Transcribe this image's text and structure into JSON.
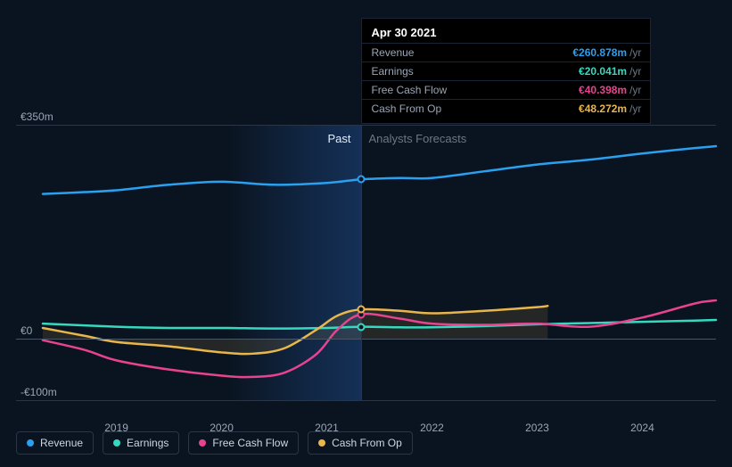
{
  "tooltip": {
    "date": "Apr 30 2021",
    "unit": "/yr",
    "rows": [
      {
        "label": "Revenue",
        "value": "€260.878m",
        "color": "#2aa0f0"
      },
      {
        "label": "Earnings",
        "value": "€20.041m",
        "color": "#35d9c0"
      },
      {
        "label": "Free Cash Flow",
        "value": "€40.398m",
        "color": "#e8438f"
      },
      {
        "label": "Cash From Op",
        "value": "€48.272m",
        "color": "#e8b64a"
      }
    ]
  },
  "chart": {
    "background_color": "#0a1420",
    "grid_color": "#2a3545",
    "zero_line_color": "#4a5565",
    "y_axis": {
      "min": -100,
      "max": 350,
      "ticks": [
        {
          "v": 350,
          "label": "€350m"
        },
        {
          "v": 0,
          "label": "€0"
        },
        {
          "v": -100,
          "label": "-€100m"
        }
      ],
      "label_color": "#9aa5b5",
      "label_fontsize": 12
    },
    "x_axis": {
      "min": 2018.3,
      "max": 2024.7,
      "ticks": [
        2019,
        2020,
        2021,
        2022,
        2023,
        2024
      ],
      "label_color": "#9aa5b5",
      "label_fontsize": 12
    },
    "split_x": 2021.33,
    "past_label": "Past",
    "forecast_label": "Analysts Forecasts",
    "past_band_start_x": 2020.05,
    "series": [
      {
        "name": "Revenue",
        "color": "#2aa0f0",
        "width": 2.5,
        "marker_value": 260.878,
        "points": [
          [
            2018.3,
            237
          ],
          [
            2018.7,
            240
          ],
          [
            2019.0,
            243
          ],
          [
            2019.5,
            252
          ],
          [
            2020.0,
            257
          ],
          [
            2020.5,
            252
          ],
          [
            2021.0,
            255
          ],
          [
            2021.33,
            260.878
          ],
          [
            2021.7,
            263
          ],
          [
            2022.0,
            263
          ],
          [
            2022.5,
            274
          ],
          [
            2023.0,
            285
          ],
          [
            2023.5,
            293
          ],
          [
            2024.0,
            303
          ],
          [
            2024.5,
            312
          ],
          [
            2024.7,
            315
          ]
        ]
      },
      {
        "name": "Earnings",
        "color": "#35d9c0",
        "width": 2.5,
        "marker_value": 20.041,
        "points": [
          [
            2018.3,
            25
          ],
          [
            2019.0,
            20
          ],
          [
            2019.5,
            18
          ],
          [
            2020.0,
            18
          ],
          [
            2020.5,
            17
          ],
          [
            2021.0,
            18
          ],
          [
            2021.33,
            20.041
          ],
          [
            2021.7,
            19
          ],
          [
            2022.0,
            19
          ],
          [
            2022.5,
            21
          ],
          [
            2023.0,
            24
          ],
          [
            2023.5,
            26
          ],
          [
            2024.0,
            28
          ],
          [
            2024.5,
            30
          ],
          [
            2024.7,
            31
          ]
        ]
      },
      {
        "name": "Free Cash Flow",
        "color": "#e8438f",
        "width": 2.5,
        "marker_value": 40.398,
        "points": [
          [
            2018.3,
            -2
          ],
          [
            2018.7,
            -18
          ],
          [
            2019.0,
            -35
          ],
          [
            2019.5,
            -50
          ],
          [
            2020.0,
            -60
          ],
          [
            2020.3,
            -62
          ],
          [
            2020.6,
            -55
          ],
          [
            2020.9,
            -25
          ],
          [
            2021.1,
            15
          ],
          [
            2021.33,
            40.398
          ],
          [
            2021.7,
            33
          ],
          [
            2022.0,
            25
          ],
          [
            2022.5,
            23
          ],
          [
            2023.0,
            25
          ],
          [
            2023.5,
            20
          ],
          [
            2024.0,
            35
          ],
          [
            2024.5,
            58
          ],
          [
            2024.7,
            63
          ]
        ]
      },
      {
        "name": "Cash From Op",
        "color": "#e8b64a",
        "width": 2.5,
        "marker_value": 48.272,
        "fill_to_zero": true,
        "fill_opacity": 0.12,
        "last_fill_x": 2023.1,
        "points": [
          [
            2018.3,
            18
          ],
          [
            2018.7,
            5
          ],
          [
            2019.0,
            -5
          ],
          [
            2019.5,
            -12
          ],
          [
            2020.0,
            -22
          ],
          [
            2020.3,
            -24
          ],
          [
            2020.6,
            -15
          ],
          [
            2020.9,
            15
          ],
          [
            2021.1,
            38
          ],
          [
            2021.33,
            48.272
          ],
          [
            2021.7,
            46
          ],
          [
            2022.0,
            42
          ],
          [
            2022.5,
            46
          ],
          [
            2023.0,
            52
          ],
          [
            2023.1,
            54
          ]
        ]
      }
    ]
  },
  "legend": {
    "border_color": "#2a3545",
    "text_color": "#cdd6e2",
    "items": [
      {
        "label": "Revenue",
        "color": "#2aa0f0"
      },
      {
        "label": "Earnings",
        "color": "#35d9c0"
      },
      {
        "label": "Free Cash Flow",
        "color": "#e8438f"
      },
      {
        "label": "Cash From Op",
        "color": "#e8b64a"
      }
    ]
  }
}
